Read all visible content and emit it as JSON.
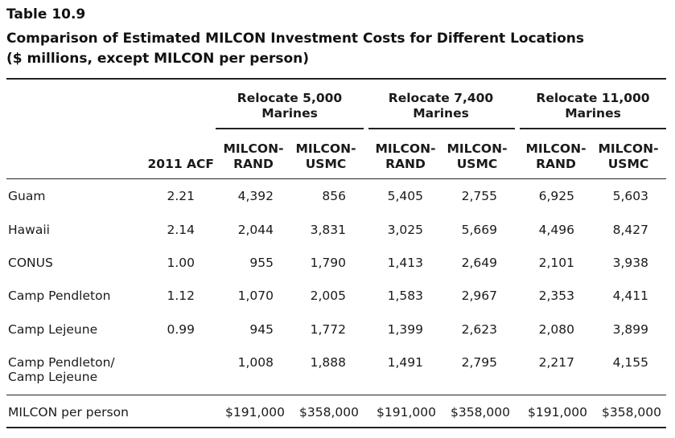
{
  "table": {
    "number": "Table 10.9",
    "title": "Comparison of Estimated MILCON Investment Costs for Different Locations",
    "subtitle": "($ millions, except MILCON per person)",
    "groups": [
      {
        "line1": "Relocate 5,000",
        "line2": "Marines"
      },
      {
        "line1": "Relocate 7,400",
        "line2": "Marines"
      },
      {
        "line1": "Relocate 11,000",
        "line2": "Marines"
      }
    ],
    "columns": [
      {
        "line1": "",
        "line2": "2011 ACF"
      },
      {
        "line1": "MILCON-",
        "line2": "RAND"
      },
      {
        "line1": "MILCON-",
        "line2": "USMC"
      },
      {
        "line1": "MILCON-",
        "line2": "RAND"
      },
      {
        "line1": "MILCON-",
        "line2": "USMC"
      },
      {
        "line1": "MILCON-",
        "line2": "RAND"
      },
      {
        "line1": "MILCON-",
        "line2": "USMC"
      }
    ],
    "rows": [
      {
        "label1": "Guam",
        "label2": "",
        "values": [
          "2.21",
          "4,392",
          "856",
          "5,405",
          "2,755",
          "6,925",
          "5,603"
        ]
      },
      {
        "label1": "Hawaii",
        "label2": "",
        "values": [
          "2.14",
          "2,044",
          "3,831",
          "3,025",
          "5,669",
          "4,496",
          "8,427"
        ]
      },
      {
        "label1": "CONUS",
        "label2": "",
        "values": [
          "1.00",
          "955",
          "1,790",
          "1,413",
          "2,649",
          "2,101",
          "3,938"
        ]
      },
      {
        "label1": "Camp Pendleton",
        "label2": "",
        "values": [
          "1.12",
          "1,070",
          "2,005",
          "1,583",
          "2,967",
          "2,353",
          "4,411"
        ]
      },
      {
        "label1": "Camp Lejeune",
        "label2": "",
        "values": [
          "0.99",
          "945",
          "1,772",
          "1,399",
          "2,623",
          "2,080",
          "3,899"
        ]
      },
      {
        "label1": "Camp Pendleton/",
        "label2": "Camp Lejeune",
        "values": [
          "",
          "1,008",
          "1,888",
          "1,491",
          "2,795",
          "2,217",
          "4,155"
        ]
      }
    ],
    "per_person": {
      "label": "MILCON per person",
      "values": [
        "",
        "$191,000",
        "$358,000",
        "$191,000",
        "$358,000",
        "$191,000",
        "$358,000"
      ]
    }
  }
}
